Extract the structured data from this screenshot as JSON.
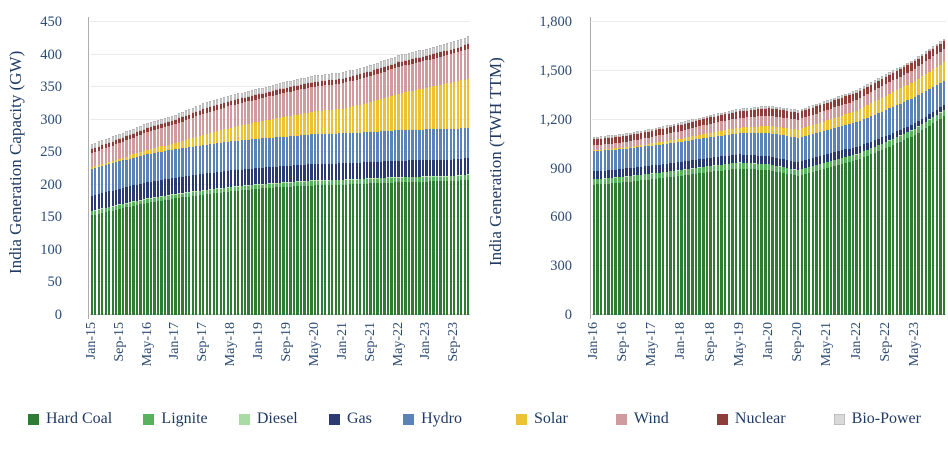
{
  "page": {
    "background": "#ffffff"
  },
  "colors": {
    "text": "#25456f",
    "axis_line": "#adadad",
    "gridline": "#ebebeb",
    "baseline": "#c6c6c6"
  },
  "chart_data": [
    {
      "type": "bar",
      "stacked": true,
      "title": "",
      "y_axis_title": "India Generation Capacity (GW)",
      "unit": "GW",
      "y_ticks": [
        "450",
        "400",
        "350",
        "300",
        "250",
        "200",
        "150",
        "100",
        "50",
        "0"
      ],
      "y_max": 450,
      "ylim": [
        0,
        450
      ],
      "grid": "horizontal",
      "bar_period": "monthly",
      "n_bars": 109,
      "x_tick_labels": [
        "Jan-15",
        "Sep-15",
        "May-16",
        "Jan-17",
        "Sep-17",
        "May-18",
        "Jan-19",
        "Sep-19",
        "May-20",
        "Jan-21",
        "Sep-21",
        "May-22",
        "Jan-23",
        "Sep-23"
      ],
      "x_tick_every": 8,
      "keyframe_indices": [
        0,
        8,
        16,
        24,
        32,
        40,
        48,
        56,
        64,
        72,
        80,
        88,
        96,
        104,
        108
      ],
      "keyframe_months": [
        "Jan-15",
        "Sep-15",
        "May-16",
        "Jan-17",
        "Sep-17",
        "May-18",
        "Jan-19",
        "Sep-19",
        "May-20",
        "Jan-21",
        "Sep-21",
        "May-22",
        "Jan-23",
        "Sep-23",
        "Jan-24"
      ],
      "series": [
        {
          "name": "Hard Coal",
          "color": "#2f7b33",
          "values": [
            153,
            163,
            172,
            179,
            185,
            190,
            194,
            197,
            199,
            200,
            202,
            204,
            205,
            206,
            208
          ]
        },
        {
          "name": "Lignite",
          "color": "#56b25c",
          "values": [
            6,
            6,
            6,
            6,
            6,
            6,
            6,
            6,
            7,
            7,
            7,
            7,
            7,
            7,
            7
          ]
        },
        {
          "name": "Diesel",
          "color": "#aadba5",
          "values": [
            1,
            1,
            1,
            1,
            1,
            1,
            1,
            1,
            1,
            1,
            1,
            1,
            1,
            1,
            1
          ]
        },
        {
          "name": "Gas",
          "color": "#2b3a72",
          "values": [
            23,
            24,
            25,
            25,
            25,
            25,
            25,
            25,
            25,
            25,
            25,
            25,
            25,
            25,
            25
          ]
        },
        {
          "name": "Hydro",
          "color": "#5b83b8",
          "values": [
            41,
            42,
            43,
            44,
            44,
            45,
            45,
            45,
            46,
            46,
            46,
            47,
            47,
            47,
            47
          ]
        },
        {
          "name": "Solar",
          "color": "#eac234",
          "values": [
            3,
            4,
            7,
            9,
            15,
            21,
            26,
            31,
            35,
            38,
            46,
            56,
            64,
            72,
            75
          ]
        },
        {
          "name": "Wind",
          "color": "#cf9b9e",
          "values": [
            22,
            24,
            27,
            29,
            33,
            34,
            35,
            37,
            38,
            39,
            40,
            41,
            42,
            44,
            45
          ]
        },
        {
          "name": "Nuclear",
          "color": "#8e3d3b",
          "values": [
            6,
            6,
            6,
            7,
            7,
            7,
            7,
            7,
            7,
            7,
            7,
            7,
            7,
            7,
            8
          ]
        },
        {
          "name": "Bio-Power",
          "color": "#d9d9d9",
          "values": [
            8,
            8,
            8,
            8,
            9,
            9,
            9,
            10,
            10,
            10,
            10,
            11,
            11,
            12,
            12
          ]
        }
      ]
    },
    {
      "type": "bar",
      "stacked": true,
      "title": "",
      "y_axis_title": "India Generation (TWH TTM)",
      "unit": "TWH TTM",
      "y_ticks": [
        "1,800",
        "1,500",
        "1,200",
        "900",
        "600",
        "300",
        "0"
      ],
      "y_max": 1800,
      "ylim": [
        0,
        1800
      ],
      "grid": "horizontal",
      "bar_period": "monthly",
      "n_bars": 97,
      "x_tick_labels": [
        "Jan-16",
        "Sep-16",
        "May-17",
        "Jan-18",
        "Sep-18",
        "May-19",
        "Jan-20",
        "Sep-20",
        "May-21",
        "Jan-22",
        "Sep-22",
        "May-23"
      ],
      "x_tick_every": 8,
      "keyframe_indices": [
        0,
        8,
        16,
        24,
        32,
        40,
        48,
        56,
        64,
        72,
        80,
        88,
        96
      ],
      "keyframe_months": [
        "Jan-16",
        "Sep-16",
        "May-17",
        "Jan-18",
        "Sep-18",
        "May-19",
        "Jan-20",
        "Sep-20",
        "May-21",
        "Jan-22",
        "Sep-22",
        "May-23",
        "Jan-24"
      ],
      "series": [
        {
          "name": "Hard Coal",
          "color": "#2f7b33",
          "values": [
            800,
            815,
            835,
            855,
            880,
            900,
            890,
            855,
            905,
            950,
            1025,
            1105,
            1220
          ]
        },
        {
          "name": "Lignite",
          "color": "#56b25c",
          "values": [
            33,
            33,
            34,
            35,
            36,
            36,
            35,
            34,
            35,
            36,
            37,
            38,
            38
          ]
        },
        {
          "name": "Diesel",
          "color": "#aadba5",
          "values": [
            2,
            2,
            1,
            1,
            1,
            1,
            1,
            1,
            1,
            1,
            1,
            1,
            1
          ]
        },
        {
          "name": "Gas",
          "color": "#2b3a72",
          "values": [
            47,
            48,
            49,
            50,
            50,
            50,
            48,
            48,
            50,
            46,
            36,
            33,
            32
          ]
        },
        {
          "name": "Hydro",
          "color": "#5b83b8",
          "values": [
            124,
            122,
            122,
            124,
            127,
            130,
            145,
            150,
            145,
            150,
            160,
            162,
            148
          ]
        },
        {
          "name": "Solar",
          "color": "#eac234",
          "values": [
            6,
            8,
            13,
            19,
            27,
            35,
            43,
            51,
            60,
            72,
            88,
            100,
            113
          ]
        },
        {
          "name": "Wind",
          "color": "#cf9b9e",
          "values": [
            30,
            33,
            40,
            48,
            55,
            60,
            63,
            62,
            64,
            66,
            70,
            74,
            82
          ]
        },
        {
          "name": "Nuclear",
          "color": "#8e3d3b",
          "values": [
            37,
            37,
            37,
            38,
            38,
            40,
            45,
            43,
            44,
            45,
            46,
            46,
            48
          ]
        },
        {
          "name": "Bio-Power",
          "color": "#d9d9d9",
          "values": [
            15,
            15,
            15,
            15,
            16,
            16,
            16,
            16,
            16,
            16,
            16,
            16,
            16
          ]
        }
      ]
    }
  ],
  "legend": {
    "groups": [
      {
        "items": [
          {
            "label": "Hard Coal",
            "color": "#2f7b33"
          },
          {
            "label": "Lignite",
            "color": "#56b25c"
          },
          {
            "label": "Diesel",
            "color": "#aadba5"
          },
          {
            "label": "Gas",
            "color": "#2b3a72"
          },
          {
            "label": "Hydro",
            "color": "#5b83b8"
          }
        ]
      },
      {
        "items": [
          {
            "label": "Solar",
            "color": "#eac234"
          },
          {
            "label": "Wind",
            "color": "#cf9b9e"
          },
          {
            "label": "Nuclear",
            "color": "#8e3d3b"
          },
          {
            "label": "Bio-Power",
            "color": "#d9d9d9"
          }
        ]
      }
    ]
  }
}
